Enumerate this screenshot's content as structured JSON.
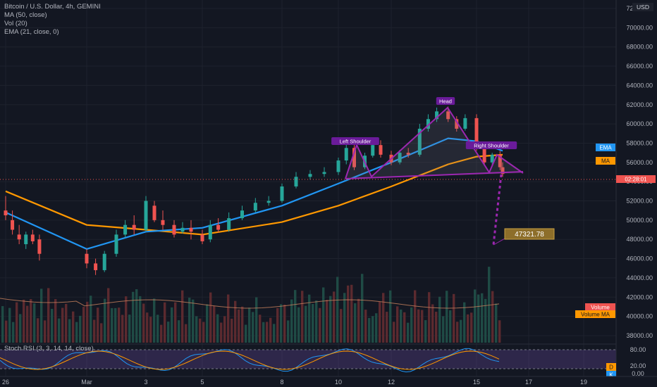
{
  "symbol": "Bitcoin / U.S. Dollar, 4h, GEMINI",
  "legend": [
    "MA (50, close)",
    "Vol (20)",
    "EMA (21, close, 0)"
  ],
  "currency": "USD",
  "price_axis": [
    "72000.00",
    "70000.00",
    "68000.00",
    "66000.00",
    "64000.00",
    "62000.00",
    "60000.00",
    "58000.00",
    "56000.00",
    "54000.00",
    "52000.00",
    "50000.00",
    "48000.00",
    "46000.00",
    "44000.00",
    "42000.00",
    "40000.00",
    "38000.00"
  ],
  "time_axis": [
    "26",
    "Mar",
    "3",
    "5",
    "8",
    "10",
    "12",
    "15",
    "17",
    "19"
  ],
  "rsi_title": "Stoch RSI (3, 3, 14, 14, close)",
  "rsi_axis": [
    "80.00",
    "20.00",
    "0.00"
  ],
  "badges": {
    "ema": "EMA",
    "ma": "MA",
    "countdown": "02:28:01",
    "volume": "Volume",
    "volume_ma": "Volume MA",
    "d": "D",
    "k": "K"
  },
  "annotations": {
    "left_shoulder": "Left Shoulder",
    "head": "Head",
    "right_shoulder": "Right Shoulder",
    "target": "47321.78"
  },
  "colors": {
    "up": "#26a69a",
    "down": "#ef5350",
    "ema": "#2196f3",
    "ma": "#ff9800",
    "pattern": "#9c27b0",
    "target_bg": "#8d6e2a"
  },
  "chart_data": {
    "type": "candlestick",
    "ylim": [
      38000,
      72000
    ],
    "candles_approx": [
      [
        26,
        51000,
        52500,
        50500,
        50000
      ],
      [
        26.5,
        50000,
        51000,
        49000,
        48500
      ],
      [
        27,
        48500,
        49500,
        48000,
        47500
      ],
      [
        27.5,
        47500,
        48800,
        48500,
        47000
      ],
      [
        28,
        48500,
        49000,
        47800,
        47500
      ],
      [
        28.5,
        48000,
        48500,
        46500,
        45800
      ],
      [
        1,
        46500,
        47000,
        45500,
        45000
      ],
      [
        1.3,
        45500,
        46000,
        44800,
        44300
      ],
      [
        1.6,
        44800,
        46800,
        46500,
        44600
      ],
      [
        2,
        46500,
        49000,
        48500,
        46200
      ],
      [
        2.3,
        48500,
        50000,
        49500,
        48200
      ],
      [
        2.6,
        49500,
        50500,
        49000,
        48500
      ],
      [
        3,
        49000,
        52500,
        52000,
        48800
      ],
      [
        3.3,
        51500,
        52000,
        50000,
        49800
      ],
      [
        3.6,
        50000,
        51000,
        49500,
        49000
      ],
      [
        4,
        49500,
        50000,
        48500,
        48200
      ],
      [
        4.3,
        48800,
        49800,
        49200,
        48600
      ],
      [
        4.6,
        49200,
        50000,
        48800,
        48000
      ],
      [
        5,
        48500,
        49000,
        47800,
        47500
      ],
      [
        5.3,
        48000,
        50000,
        49500,
        47700
      ],
      [
        5.6,
        49500,
        50200,
        49000,
        48700
      ],
      [
        6,
        49000,
        50800,
        50200,
        48800
      ],
      [
        6.5,
        50200,
        51500,
        51000,
        50000
      ],
      [
        7,
        51000,
        52300,
        51800,
        50800
      ],
      [
        7.5,
        51800,
        52500,
        52000,
        51500
      ],
      [
        8,
        52000,
        53800,
        53500,
        51800
      ],
      [
        8.5,
        53500,
        55000,
        54500,
        53300
      ],
      [
        9,
        54500,
        55200,
        54800,
        54200
      ],
      [
        9.5,
        54800,
        55500,
        55000,
        54500
      ],
      [
        10,
        55000,
        56500,
        56200,
        54700
      ],
      [
        10.3,
        56200,
        58000,
        57500,
        55800
      ],
      [
        10.6,
        57500,
        57800,
        55500,
        55200
      ],
      [
        11,
        55500,
        57000,
        56700,
        55300
      ],
      [
        11.3,
        56700,
        58000,
        57800,
        56500
      ],
      [
        11.6,
        57800,
        58300,
        56800,
        56500
      ],
      [
        12,
        56800,
        57200,
        56000,
        55700
      ],
      [
        12.3,
        56000,
        57300,
        57000,
        55800
      ],
      [
        12.6,
        57000,
        57500,
        56800,
        56500
      ],
      [
        13,
        56800,
        60000,
        59500,
        56600
      ],
      [
        13.3,
        59500,
        61000,
        60500,
        59200
      ],
      [
        13.6,
        60500,
        61700,
        61300,
        60200
      ],
      [
        14,
        61300,
        61800,
        60500,
        60200
      ],
      [
        14.3,
        60500,
        60800,
        59500,
        59200
      ],
      [
        14.6,
        59500,
        61000,
        60600,
        59300
      ],
      [
        15,
        60600,
        61000,
        57500,
        57200
      ],
      [
        15.3,
        57500,
        58000,
        56000,
        55800
      ],
      [
        15.6,
        56000,
        57000,
        56800,
        55700
      ],
      [
        15.9,
        56800,
        57200,
        55500,
        55200
      ],
      [
        16,
        55500,
        56000,
        54800,
        54500
      ]
    ],
    "series": [
      {
        "name": "EMA",
        "points_approx": [
          [
            26,
            50800
          ],
          [
            1,
            47000
          ],
          [
            3,
            48800
          ],
          [
            5,
            49200
          ],
          [
            8,
            51500
          ],
          [
            10,
            53800
          ],
          [
            12,
            56000
          ],
          [
            14,
            58500
          ],
          [
            15,
            58200
          ],
          [
            16,
            57200
          ]
        ]
      },
      {
        "name": "MA",
        "points_approx": [
          [
            26,
            53000
          ],
          [
            1,
            49500
          ],
          [
            3,
            49000
          ],
          [
            5,
            48500
          ],
          [
            8,
            49800
          ],
          [
            10,
            51500
          ],
          [
            12,
            53500
          ],
          [
            14,
            55800
          ],
          [
            15,
            56600
          ],
          [
            16,
            56800
          ]
        ]
      }
    ],
    "head_and_shoulders_target": 47321.78
  }
}
